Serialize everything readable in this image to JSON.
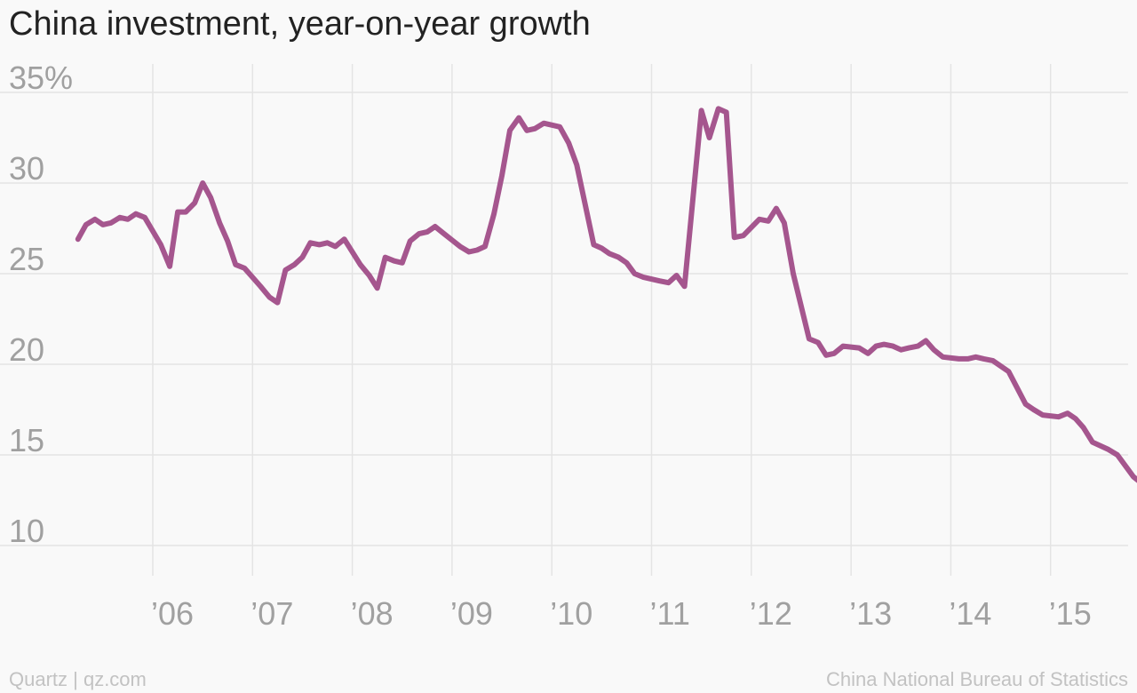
{
  "chart_data": {
    "type": "line",
    "title": "China investment, year-on-year growth",
    "xlabel": "",
    "ylabel": "",
    "ylim": [
      10,
      35
    ],
    "xlim": [
      2005.22,
      2015.72
    ],
    "y_ticks": [
      {
        "value": 35,
        "label": "35%"
      },
      {
        "value": 30,
        "label": "30"
      },
      {
        "value": 25,
        "label": "25"
      },
      {
        "value": 20,
        "label": "20"
      },
      {
        "value": 15,
        "label": "15"
      },
      {
        "value": 10,
        "label": "10"
      }
    ],
    "x_ticks": [
      {
        "value": 2006,
        "label": "’06"
      },
      {
        "value": 2007,
        "label": "’07"
      },
      {
        "value": 2008,
        "label": "’08"
      },
      {
        "value": 2009,
        "label": "’09"
      },
      {
        "value": 2010,
        "label": "’10"
      },
      {
        "value": 2011,
        "label": "’11"
      },
      {
        "value": 2012,
        "label": "’12"
      },
      {
        "value": 2013,
        "label": "’13"
      },
      {
        "value": 2014,
        "label": "’14"
      },
      {
        "value": 2015,
        "label": "’15"
      }
    ],
    "grid": true,
    "line_color": "#a5568e",
    "series": [
      {
        "values": [
          [
            2005.25,
            26.9
          ],
          [
            2005.33,
            27.7
          ],
          [
            2005.42,
            28.0
          ],
          [
            2005.5,
            27.7
          ],
          [
            2005.58,
            27.8
          ],
          [
            2005.67,
            28.1
          ],
          [
            2005.75,
            28.0
          ],
          [
            2005.83,
            28.3
          ],
          [
            2005.92,
            28.1
          ],
          [
            2006.08,
            26.6
          ],
          [
            2006.17,
            25.4
          ],
          [
            2006.25,
            28.4
          ],
          [
            2006.33,
            28.4
          ],
          [
            2006.42,
            28.9
          ],
          [
            2006.5,
            30.0
          ],
          [
            2006.58,
            29.2
          ],
          [
            2006.67,
            27.8
          ],
          [
            2006.75,
            26.8
          ],
          [
            2006.83,
            25.5
          ],
          [
            2006.92,
            25.3
          ],
          [
            2007.08,
            24.3
          ],
          [
            2007.17,
            23.7
          ],
          [
            2007.25,
            23.4
          ],
          [
            2007.33,
            25.2
          ],
          [
            2007.42,
            25.5
          ],
          [
            2007.5,
            25.9
          ],
          [
            2007.58,
            26.7
          ],
          [
            2007.67,
            26.6
          ],
          [
            2007.75,
            26.7
          ],
          [
            2007.83,
            26.5
          ],
          [
            2007.92,
            26.9
          ],
          [
            2008.08,
            25.5
          ],
          [
            2008.17,
            24.9
          ],
          [
            2008.25,
            24.2
          ],
          [
            2008.33,
            25.9
          ],
          [
            2008.42,
            25.7
          ],
          [
            2008.5,
            25.6
          ],
          [
            2008.58,
            26.8
          ],
          [
            2008.67,
            27.2
          ],
          [
            2008.75,
            27.3
          ],
          [
            2008.83,
            27.6
          ],
          [
            2008.92,
            27.2
          ],
          [
            2009.08,
            26.5
          ],
          [
            2009.17,
            26.2
          ],
          [
            2009.25,
            26.3
          ],
          [
            2009.33,
            26.5
          ],
          [
            2009.42,
            28.3
          ],
          [
            2009.5,
            30.4
          ],
          [
            2009.58,
            32.9
          ],
          [
            2009.67,
            33.6
          ],
          [
            2009.75,
            32.9
          ],
          [
            2009.83,
            33.0
          ],
          [
            2009.92,
            33.3
          ],
          [
            2010.08,
            33.1
          ],
          [
            2010.17,
            32.2
          ],
          [
            2010.25,
            31.0
          ],
          [
            2010.42,
            26.6
          ],
          [
            2010.5,
            26.4
          ],
          [
            2010.58,
            26.1
          ],
          [
            2010.67,
            25.9
          ],
          [
            2010.75,
            25.6
          ],
          [
            2010.83,
            25.0
          ],
          [
            2010.92,
            24.8
          ],
          [
            2011.08,
            24.6
          ],
          [
            2011.17,
            24.5
          ],
          [
            2011.25,
            24.9
          ],
          [
            2011.33,
            24.3
          ],
          [
            2011.5,
            34.0
          ],
          [
            2011.58,
            32.5
          ],
          [
            2011.67,
            34.1
          ],
          [
            2011.75,
            33.9
          ],
          [
            2011.83,
            27.0
          ],
          [
            2011.92,
            27.1
          ],
          [
            2012.08,
            28.0
          ],
          [
            2012.17,
            27.9
          ],
          [
            2012.25,
            28.6
          ],
          [
            2012.33,
            27.8
          ],
          [
            2012.42,
            25.0
          ],
          [
            2012.58,
            21.4
          ],
          [
            2012.67,
            21.2
          ],
          [
            2012.75,
            20.5
          ],
          [
            2012.83,
            20.6
          ],
          [
            2012.92,
            21.0
          ],
          [
            2013.08,
            20.9
          ],
          [
            2013.17,
            20.6
          ],
          [
            2013.25,
            21.0
          ],
          [
            2013.33,
            21.1
          ],
          [
            2013.42,
            21.0
          ],
          [
            2013.5,
            20.8
          ],
          [
            2013.58,
            20.9
          ],
          [
            2013.67,
            21.0
          ],
          [
            2013.75,
            21.3
          ],
          [
            2013.83,
            20.8
          ],
          [
            2013.92,
            20.4
          ],
          [
            2014.08,
            20.3
          ],
          [
            2014.17,
            20.3
          ],
          [
            2014.25,
            20.4
          ],
          [
            2014.33,
            20.3
          ],
          [
            2014.42,
            20.2
          ],
          [
            2014.5,
            19.9
          ],
          [
            2014.58,
            19.6
          ],
          [
            2014.75,
            17.8
          ],
          [
            2014.83,
            17.5
          ],
          [
            2014.92,
            17.2
          ],
          [
            2015.08,
            17.1
          ],
          [
            2015.17,
            17.3
          ],
          [
            2015.25,
            17.0
          ],
          [
            2015.33,
            16.5
          ],
          [
            2015.42,
            15.7
          ],
          [
            2015.58,
            15.3
          ],
          [
            2015.67,
            15.0
          ],
          [
            2015.83,
            13.8
          ],
          [
            2015.92,
            13.4
          ]
        ]
      }
    ]
  },
  "footer": {
    "left": "Quartz | qz.com",
    "right": "China National Bureau of Statistics"
  }
}
